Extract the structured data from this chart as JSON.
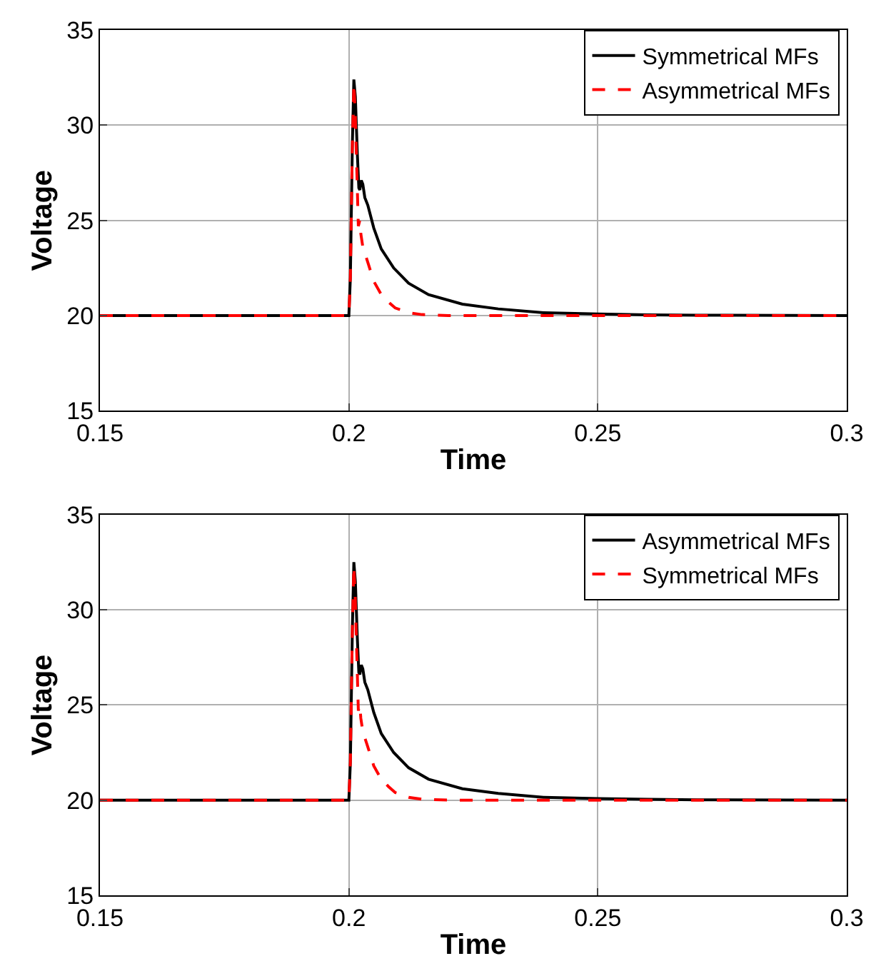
{
  "chart_data": [
    {
      "type": "line",
      "xlabel": "Time",
      "ylabel": "Voltage",
      "xlim": [
        0.15,
        0.3
      ],
      "xticks": [
        0.15,
        0.2,
        0.25,
        0.3
      ],
      "ylim": [
        15,
        35
      ],
      "yticks": [
        15,
        20,
        25,
        30,
        35
      ],
      "grid": true,
      "legend": "top right",
      "marker": "none",
      "series": [
        {
          "name": "Symmetrical MFs",
          "color": "#000000",
          "line_style": "solid",
          "x": [
            0.15,
            0.2,
            0.2003,
            0.2007,
            0.201,
            0.2013,
            0.2017,
            0.202,
            0.2022,
            0.2025,
            0.2028,
            0.2032,
            0.2038,
            0.205,
            0.2065,
            0.209,
            0.212,
            0.216,
            0.2228,
            0.23,
            0.2391,
            0.25,
            0.26,
            0.27,
            0.3
          ],
          "values": [
            20,
            20,
            22,
            29,
            32.4,
            31.5,
            28.5,
            26.7,
            26.6,
            27.1,
            26.9,
            26.2,
            25.8,
            24.6,
            23.5,
            22.5,
            21.7,
            21.1,
            20.6,
            20.35,
            20.15,
            20.08,
            20.04,
            20.02,
            20
          ]
        },
        {
          "name": "Asymmetrical MFs",
          "color": "#ff0000",
          "line_style": "dashed",
          "x": [
            0.15,
            0.2,
            0.2003,
            0.2007,
            0.201,
            0.2013,
            0.2015,
            0.2019,
            0.2022,
            0.2024,
            0.2028,
            0.2038,
            0.205,
            0.2065,
            0.208,
            0.2093,
            0.212,
            0.2147,
            0.22,
            0.3
          ],
          "values": [
            20,
            20,
            22,
            29,
            32.2,
            30.5,
            28.5,
            24.7,
            25.0,
            24.3,
            23.6,
            22.8,
            21.8,
            21.1,
            20.7,
            20.4,
            20.15,
            20.05,
            20,
            20
          ]
        }
      ]
    },
    {
      "type": "line",
      "xlabel": "Time",
      "ylabel": "Voltage",
      "xlim": [
        0.15,
        0.3
      ],
      "xticks": [
        0.15,
        0.2,
        0.25,
        0.3
      ],
      "ylim": [
        15,
        35
      ],
      "yticks": [
        15,
        20,
        25,
        30,
        35
      ],
      "grid": true,
      "legend": "top right",
      "marker": "none",
      "series": [
        {
          "name": "Asymmetrical MFs",
          "color": "#000000",
          "line_style": "solid",
          "x": [
            0.15,
            0.2,
            0.2003,
            0.2007,
            0.201,
            0.2013,
            0.2017,
            0.202,
            0.2022,
            0.2025,
            0.2028,
            0.2032,
            0.2038,
            0.205,
            0.2065,
            0.209,
            0.212,
            0.216,
            0.2228,
            0.23,
            0.2391,
            0.25,
            0.26,
            0.27,
            0.3
          ],
          "values": [
            20,
            20,
            22,
            29,
            32.5,
            31.5,
            28.5,
            26.7,
            26.6,
            27.1,
            26.9,
            26.2,
            25.8,
            24.6,
            23.5,
            22.5,
            21.7,
            21.1,
            20.6,
            20.35,
            20.15,
            20.08,
            20.04,
            20.02,
            20
          ]
        },
        {
          "name": "Symmetrical MFs",
          "color": "#ff0000",
          "line_style": "dashed",
          "x": [
            0.15,
            0.2,
            0.2003,
            0.2007,
            0.201,
            0.2013,
            0.2015,
            0.2019,
            0.2022,
            0.2024,
            0.2028,
            0.2038,
            0.205,
            0.2065,
            0.208,
            0.2093,
            0.212,
            0.2147,
            0.22,
            0.3
          ],
          "values": [
            20,
            20,
            22,
            29,
            32.3,
            30.5,
            28.5,
            24.7,
            25.0,
            24.3,
            23.6,
            22.8,
            21.8,
            21.1,
            20.7,
            20.4,
            20.15,
            20.05,
            20,
            20
          ]
        }
      ]
    }
  ]
}
